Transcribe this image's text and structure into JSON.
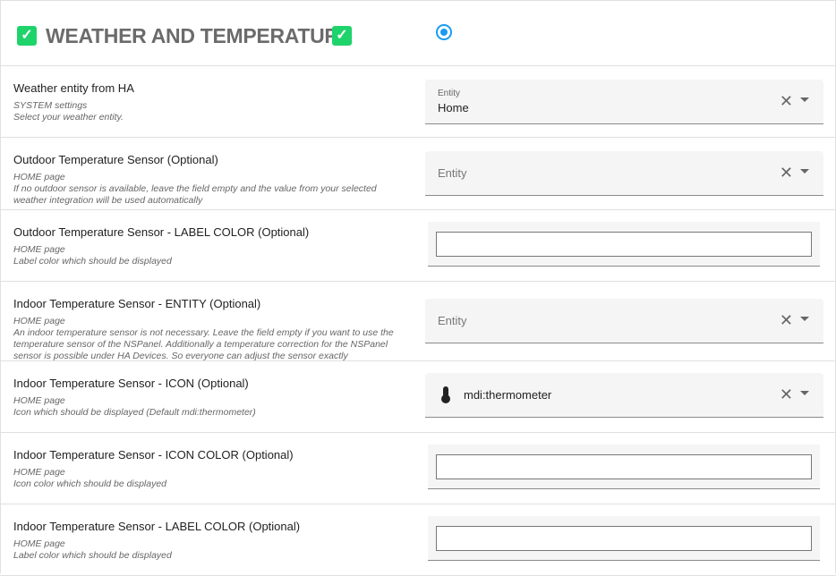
{
  "header": {
    "title": "WEATHER AND TEMPERATURE",
    "accent": "#1fd36b",
    "radio_color": "#1a9bf0"
  },
  "rows": [
    {
      "label": "Weather entity from HA",
      "section": "SYSTEM settings",
      "desc": "Select your weather entity.",
      "field": {
        "type": "entity",
        "label": "Entity",
        "value": "Home"
      }
    },
    {
      "label": "Outdoor Temperature Sensor (Optional)",
      "section": "HOME page",
      "desc": "If no outdoor sensor is available, leave the field empty and the value from your selected weather integration will be used automatically",
      "field": {
        "type": "entity",
        "placeholder": "Entity"
      }
    },
    {
      "label": "Outdoor Temperature Sensor - LABEL COLOR (Optional)",
      "section": "HOME page",
      "desc": "Label color which should be displayed",
      "field": {
        "type": "text",
        "value": ""
      }
    },
    {
      "label": "Indoor Temperature Sensor - ENTITY (Optional)",
      "section": "HOME page",
      "desc": "An indoor temperature sensor is not necessary. Leave the field empty if you want to use the temperature sensor of the NSPanel. Additionally a temperature correction for the NSPanel sensor is possible under HA Devices. So everyone can adjust the sensor exactly",
      "field": {
        "type": "entity",
        "placeholder": "Entity"
      }
    },
    {
      "label": "Indoor Temperature Sensor - ICON (Optional)",
      "section": "HOME page",
      "desc": "Icon which should be displayed (Default mdi:thermometer)",
      "field": {
        "type": "icon",
        "value": "mdi:thermometer",
        "icon": "thermometer-icon"
      }
    },
    {
      "label": "Indoor Temperature Sensor - ICON COLOR (Optional)",
      "section": "HOME page",
      "desc": "Icon color which should be displayed",
      "field": {
        "type": "text",
        "value": ""
      }
    },
    {
      "label": "Indoor Temperature Sensor - LABEL COLOR (Optional)",
      "section": "HOME page",
      "desc": "Label color which should be displayed",
      "field": {
        "type": "text",
        "value": ""
      }
    }
  ]
}
